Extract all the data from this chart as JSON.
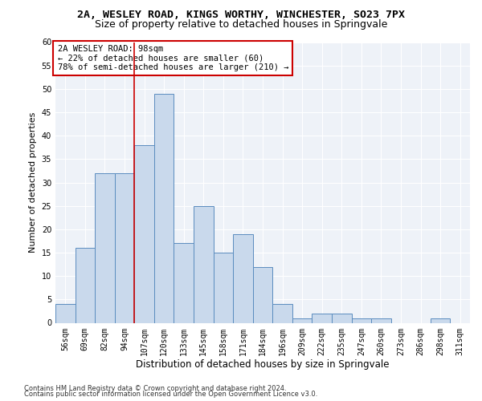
{
  "title1": "2A, WESLEY ROAD, KINGS WORTHY, WINCHESTER, SO23 7PX",
  "title2": "Size of property relative to detached houses in Springvale",
  "xlabel": "Distribution of detached houses by size in Springvale",
  "ylabel": "Number of detached properties",
  "categories": [
    "56sqm",
    "69sqm",
    "82sqm",
    "94sqm",
    "107sqm",
    "120sqm",
    "133sqm",
    "145sqm",
    "158sqm",
    "171sqm",
    "184sqm",
    "196sqm",
    "209sqm",
    "222sqm",
    "235sqm",
    "247sqm",
    "260sqm",
    "273sqm",
    "286sqm",
    "298sqm",
    "311sqm"
  ],
  "values": [
    4,
    16,
    32,
    32,
    38,
    49,
    17,
    25,
    15,
    19,
    12,
    4,
    1,
    2,
    2,
    1,
    1,
    0,
    0,
    1,
    0
  ],
  "bar_color": "#c9d9ec",
  "bar_edge_color": "#5a8cbf",
  "vline_x": 3.5,
  "vline_color": "#cc0000",
  "annotation_title": "2A WESLEY ROAD: 98sqm",
  "annotation_line1": "← 22% of detached houses are smaller (60)",
  "annotation_line2": "78% of semi-detached houses are larger (210) →",
  "annotation_box_color": "#ffffff",
  "annotation_box_edge_color": "#cc0000",
  "ylim": [
    0,
    60
  ],
  "yticks": [
    0,
    5,
    10,
    15,
    20,
    25,
    30,
    35,
    40,
    45,
    50,
    55,
    60
  ],
  "footer1": "Contains HM Land Registry data © Crown copyright and database right 2024.",
  "footer2": "Contains public sector information licensed under the Open Government Licence v3.0.",
  "bg_color": "#eef2f8",
  "title1_fontsize": 9.5,
  "title2_fontsize": 9.0,
  "xlabel_fontsize": 8.5,
  "ylabel_fontsize": 8.0,
  "tick_fontsize": 7.0,
  "ann_fontsize": 7.5,
  "footer_fontsize": 6.0
}
